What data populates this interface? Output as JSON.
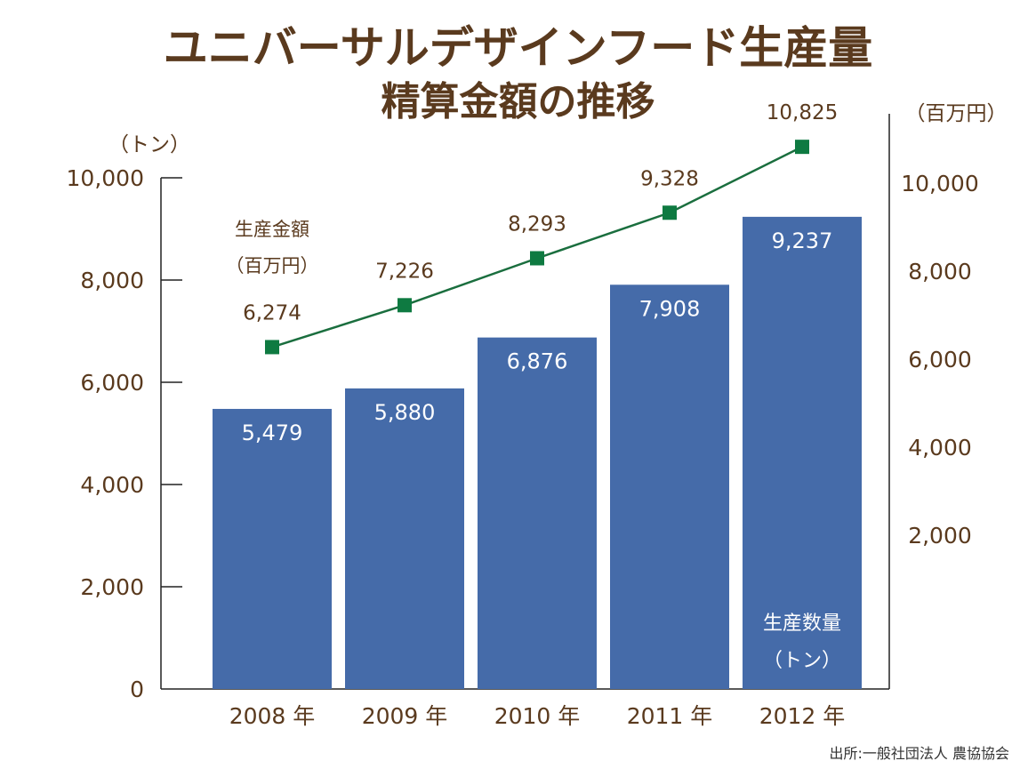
{
  "title_line1": "ユニバーサルデザインフード生産量",
  "title_line2": "精算金額の推移",
  "source": "出所:一般社団法人 農協協会",
  "colors": {
    "bar": "#456ba9",
    "line": "#1a6e3e",
    "marker": "#0e7a41",
    "text": "#5a3a1e",
    "axis": "#222222"
  },
  "chart_data": {
    "type": "bar+line",
    "categories": [
      "2008 年",
      "2009 年",
      "2010 年",
      "2011 年",
      "2012 年"
    ],
    "series": [
      {
        "name": "生産数量",
        "name_line2": "（トン）",
        "type": "bar",
        "axis": "left",
        "values": [
          5479,
          5880,
          6876,
          7908,
          9237
        ],
        "labels": [
          "5,479",
          "5,880",
          "6,876",
          "7,908",
          "9,237"
        ]
      },
      {
        "name": "生産金額",
        "name_line2": "（百万円）",
        "type": "line",
        "axis": "right",
        "values": [
          6274,
          7226,
          8293,
          9328,
          10825
        ],
        "labels": [
          "6,274",
          "7,226",
          "8,293",
          "9,328",
          "10,825"
        ]
      }
    ],
    "y_left": {
      "unit": "（トン）",
      "range": [
        0,
        10000
      ],
      "ticks": [
        0,
        2000,
        4000,
        6000,
        8000,
        10000
      ],
      "tick_labels": [
        "0",
        "2,000",
        "4,000",
        "6,000",
        "8,000",
        "10,000"
      ]
    },
    "y_right": {
      "unit": "（百万円）",
      "ticks": [
        2000,
        4000,
        6000,
        8000,
        10000
      ],
      "tick_labels": [
        "2,000",
        "4,000",
        "6,000",
        "8,000",
        "10,000"
      ]
    },
    "legend": "inline"
  }
}
